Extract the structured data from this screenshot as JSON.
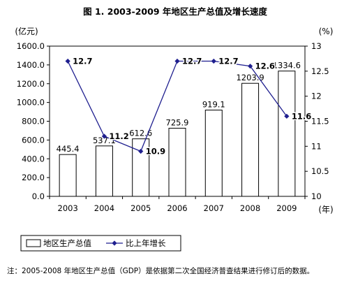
{
  "chart_data": {
    "type": "bar+line",
    "title": "图 1.  2003-2009 年地区生产总值及增长速度",
    "categories": [
      "2003",
      "2004",
      "2005",
      "2006",
      "2007",
      "2008",
      "2009"
    ],
    "x_unit": "(年)",
    "series": [
      {
        "name": "地区生产总值",
        "type": "bar",
        "axis": "left",
        "values": [
          445.4,
          537.1,
          612.6,
          725.9,
          919.1,
          1203.9,
          1334.6
        ],
        "labels": [
          "445.4",
          "537.1",
          "612.6",
          "725.9",
          "919.1",
          "1203.9",
          "1334.6"
        ],
        "color": "#ffffff",
        "stroke": "#000000"
      },
      {
        "name": "比上年增长",
        "type": "line",
        "axis": "right",
        "values": [
          12.7,
          11.2,
          10.9,
          12.7,
          12.7,
          12.6,
          11.6
        ],
        "labels": [
          "12.7",
          "11.2",
          "10.9",
          "12.7",
          "12.7",
          "12.6",
          "11.6"
        ],
        "color": "#1f1f8f"
      }
    ],
    "y_left": {
      "unit": "(亿元)",
      "range": [
        0,
        1600
      ],
      "ticks": [
        "0.0",
        "200.0",
        "400.0",
        "600.0",
        "800.0",
        "1000.0",
        "1200.0",
        "1400.0",
        "1600.0"
      ]
    },
    "y_right": {
      "unit": "(%)",
      "range": [
        10,
        13
      ],
      "ticks": [
        "10",
        "10.5",
        "11",
        "11.5",
        "12",
        "12.5",
        "13"
      ]
    },
    "grid": false,
    "legend": "bottom-left",
    "note": "注：2005-2008 年地区生产总值（GDP）是依据第二次全国经济普查结果进行修订后的数据。"
  }
}
